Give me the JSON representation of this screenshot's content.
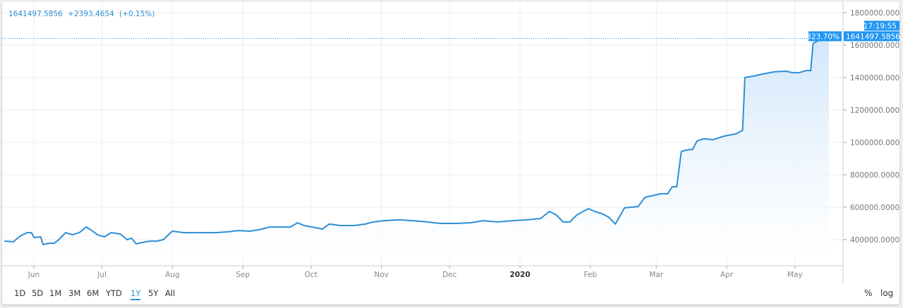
{
  "legend": {
    "last_value": "1641497.5856",
    "change": "+2393.4654",
    "change_pct": "(+0.15%)"
  },
  "price_label": {
    "percent": "323.70%",
    "value": "1641497.5856",
    "time": "17:19:55"
  },
  "colors": {
    "line": "#2d8fd5",
    "fill_top": "#cfe6fa",
    "label_bg": "#2196f3",
    "grid": "#eceef2",
    "axis": "#9aa0a8"
  },
  "ranges": [
    {
      "label": "1D"
    },
    {
      "label": "5D"
    },
    {
      "label": "1M"
    },
    {
      "label": "3M"
    },
    {
      "label": "6M"
    },
    {
      "label": "YTD"
    },
    {
      "label": "1Y",
      "active": true
    },
    {
      "label": "5Y"
    },
    {
      "label": "All"
    }
  ],
  "options": {
    "percent": "%",
    "log": "log"
  },
  "chart_data": {
    "type": "area",
    "x_tick_labels": [
      "Jun",
      "Jul",
      "Aug",
      "Sep",
      "Oct",
      "Nov",
      "Dec",
      "2020",
      "Feb",
      "Mar",
      "Apr",
      "May"
    ],
    "y_tick_labels": [
      "400000.0000",
      "600000.0000",
      "800000.0000",
      "1000000.0000",
      "1200000.0000",
      "1400000.0000",
      "1600000.0000",
      "1800000.0000"
    ],
    "y_ticks": [
      400000,
      600000,
      800000,
      1000000,
      1200000,
      1400000,
      1600000,
      1800000
    ],
    "ylim": [
      240000,
      1840000
    ],
    "grid": true,
    "x": [
      "2019-05-19",
      "2019-05-23",
      "2019-05-26",
      "2019-05-29",
      "2019-05-31",
      "2019-06-01",
      "2019-06-04",
      "2019-06-05",
      "2019-06-08",
      "2019-06-10",
      "2019-06-12",
      "2019-06-15",
      "2019-06-18",
      "2019-06-21",
      "2019-06-24",
      "2019-06-26",
      "2019-06-29",
      "2019-07-02",
      "2019-07-05",
      "2019-07-09",
      "2019-07-12",
      "2019-07-14",
      "2019-07-16",
      "2019-07-19",
      "2019-07-22",
      "2019-07-25",
      "2019-07-28",
      "2019-08-01",
      "2019-08-06",
      "2019-08-11",
      "2019-08-16",
      "2019-08-20",
      "2019-08-25",
      "2019-08-30",
      "2019-09-04",
      "2019-09-08",
      "2019-09-13",
      "2019-09-17",
      "2019-09-22",
      "2019-09-25",
      "2019-09-28",
      "2019-10-03",
      "2019-10-06",
      "2019-10-09",
      "2019-10-14",
      "2019-10-20",
      "2019-10-25",
      "2019-10-28",
      "2019-11-02",
      "2019-11-09",
      "2019-11-15",
      "2019-11-21",
      "2019-11-27",
      "2019-12-04",
      "2019-12-10",
      "2019-12-16",
      "2019-12-22",
      "2019-12-29",
      "2020-01-04",
      "2020-01-10",
      "2020-01-14",
      "2020-01-17",
      "2020-01-20",
      "2020-01-23",
      "2020-01-26",
      "2020-01-31",
      "2020-02-03",
      "2020-02-06",
      "2020-02-09",
      "2020-02-12",
      "2020-02-16",
      "2020-02-19",
      "2020-02-22",
      "2020-02-25",
      "2020-02-28",
      "2020-03-03",
      "2020-03-06",
      "2020-03-08",
      "2020-03-10",
      "2020-03-12",
      "2020-03-14",
      "2020-03-17",
      "2020-03-19",
      "2020-03-22",
      "2020-03-26",
      "2020-03-31",
      "2020-04-05",
      "2020-04-08",
      "2020-04-09",
      "2020-04-13",
      "2020-04-17",
      "2020-04-22",
      "2020-04-27",
      "2020-04-30",
      "2020-05-03",
      "2020-05-06",
      "2020-05-08",
      "2020-05-09",
      "2020-05-11",
      "2020-05-16"
    ],
    "values": [
      391000,
      387000,
      422000,
      443000,
      443000,
      413000,
      417000,
      370000,
      378000,
      378000,
      400000,
      443000,
      430000,
      443000,
      478000,
      461000,
      430000,
      417000,
      443000,
      435000,
      400000,
      409000,
      374000,
      383000,
      391000,
      391000,
      400000,
      452000,
      443000,
      443000,
      443000,
      443000,
      448000,
      456000,
      452000,
      461000,
      478000,
      478000,
      478000,
      504000,
      487000,
      474000,
      465000,
      496000,
      487000,
      487000,
      496000,
      508000,
      517000,
      522000,
      517000,
      509000,
      500000,
      500000,
      504000,
      517000,
      509000,
      517000,
      522000,
      530000,
      574000,
      552000,
      509000,
      509000,
      552000,
      591000,
      574000,
      561000,
      539000,
      496000,
      596000,
      600000,
      604000,
      661000,
      670000,
      683000,
      683000,
      726000,
      726000,
      943000,
      952000,
      957000,
      1009000,
      1022000,
      1017000,
      1039000,
      1052000,
      1074000,
      1400000,
      1409000,
      1422000,
      1435000,
      1439000,
      1430000,
      1430000,
      1443000,
      1443000,
      1609000,
      1626000,
      1641498
    ]
  }
}
